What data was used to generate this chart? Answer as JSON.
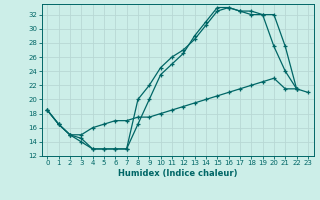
{
  "xlabel": "Humidex (Indice chaleur)",
  "bg_color": "#cceee8",
  "line_color": "#006666",
  "grid_color": "#b8d8d4",
  "xlim": [
    -0.5,
    23.5
  ],
  "ylim": [
    12,
    33.5
  ],
  "yticks": [
    12,
    14,
    16,
    18,
    20,
    22,
    24,
    26,
    28,
    30,
    32
  ],
  "xticks": [
    0,
    1,
    2,
    3,
    4,
    5,
    6,
    7,
    8,
    9,
    10,
    11,
    12,
    13,
    14,
    15,
    16,
    17,
    18,
    19,
    20,
    21,
    22,
    23
  ],
  "line_a_x": [
    0,
    1,
    2,
    3,
    4,
    5,
    6,
    7,
    8,
    9,
    10,
    11,
    12,
    13,
    14,
    15,
    16,
    17,
    18,
    19,
    20,
    21,
    22
  ],
  "line_a_y": [
    18.5,
    16.5,
    15.0,
    14.0,
    13.0,
    13.0,
    13.0,
    13.0,
    16.5,
    20.0,
    23.5,
    25.0,
    26.5,
    29.0,
    31.0,
    33.0,
    33.0,
    32.5,
    32.5,
    32.0,
    27.5,
    24.0,
    21.5
  ],
  "line_b_x": [
    0,
    1,
    2,
    3,
    4,
    5,
    6,
    7,
    8,
    9,
    10,
    11,
    12,
    13,
    14,
    15,
    16,
    17,
    18,
    19,
    20,
    21,
    22
  ],
  "line_b_y": [
    18.5,
    16.5,
    15.0,
    14.5,
    13.0,
    13.0,
    13.0,
    13.0,
    20.0,
    22.0,
    24.5,
    26.0,
    27.0,
    28.5,
    30.5,
    32.5,
    33.0,
    32.5,
    32.0,
    32.0,
    32.0,
    27.5,
    21.5
  ],
  "line_c_x": [
    0,
    1,
    2,
    3,
    4,
    5,
    6,
    7,
    8,
    9,
    10,
    11,
    12,
    13,
    14,
    15,
    16,
    17,
    18,
    19,
    20,
    21,
    22,
    23
  ],
  "line_c_y": [
    18.5,
    16.5,
    15.0,
    15.0,
    16.0,
    16.5,
    17.0,
    17.0,
    17.5,
    17.5,
    18.0,
    18.5,
    19.0,
    19.5,
    20.0,
    20.5,
    21.0,
    21.5,
    22.0,
    22.5,
    23.0,
    21.5,
    21.5,
    21.0
  ]
}
